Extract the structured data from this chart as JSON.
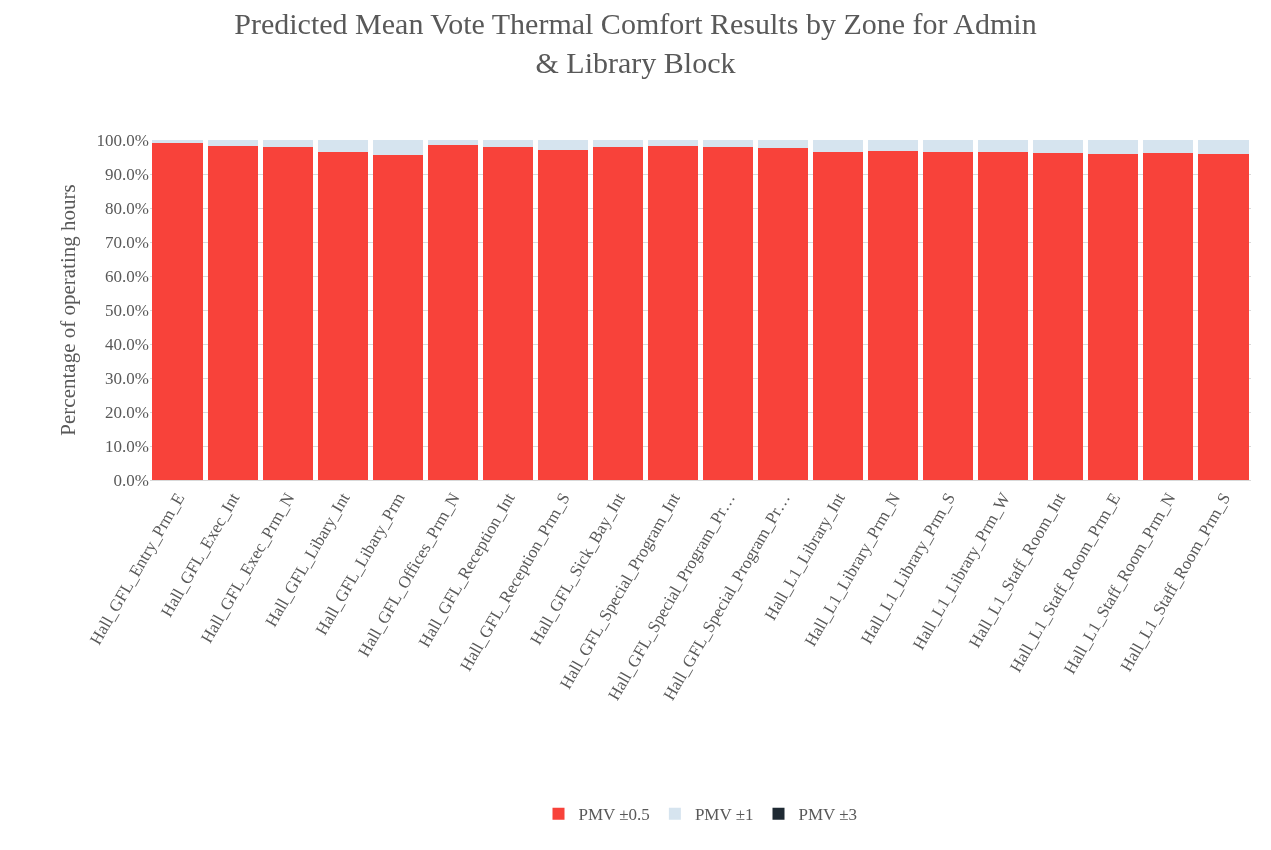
{
  "chart_data": {
    "type": "bar",
    "title": "Predicted Mean Vote Thermal Comfort Results by Zone for Admin & Library Block",
    "ylabel": "Percentage of operating hours",
    "stacked": true,
    "grid": "y",
    "legend": "bottom",
    "categories": [
      "Hall_GFL_Entry_Prm_E",
      "Hall_GFL_Exec_Int",
      "Hall_GFL_Exec_Prm_N",
      "Hall_GFL_Libary_Int",
      "Hall_GFL_Libary_Prm",
      "Hall_GFL_Offices_Prm_N",
      "Hall_GFL_Reception_Int",
      "Hall_GFL_Reception_Prm_S",
      "Hall_GFL_Sick_Bay_Int",
      "Hall_GFL_Special_Program_Int",
      "Hall_GFL_Special_Program_Pr…",
      "Hall_GFL_Special_Program_Pr…",
      "Hall_L1_Library_Int",
      "Hall_L1_Library_Prm_N",
      "Hall_L1_Library_Prm_S",
      "Hall_L1_Library_Prm_W",
      "Hall_L1_Staff_Room_Int",
      "Hall_L1_Staff_Room_Prm_E",
      "Hall_L1_Staff_Room_Prm_N",
      "Hall_L1_Staff_Room_Prm_S"
    ],
    "series": [
      {
        "name": "PMV ±0.5",
        "color": "#f8423a",
        "values": [
          99.1,
          98.2,
          97.9,
          96.5,
          95.6,
          98.4,
          97.8,
          97.2,
          97.9,
          98.2,
          98.0,
          97.6,
          96.6,
          96.8,
          96.4,
          96.6,
          96.2,
          95.9,
          96.3,
          95.8
        ]
      },
      {
        "name": "PMV ±1",
        "color": "#d6e4ef",
        "values": [
          0.9,
          1.8,
          2.1,
          3.5,
          4.4,
          1.6,
          2.2,
          2.8,
          2.1,
          1.8,
          2.0,
          2.4,
          3.4,
          3.2,
          3.6,
          3.4,
          3.8,
          4.1,
          3.7,
          4.2
        ]
      },
      {
        "name": "PMV ±3",
        "color": "#1f2a33",
        "values": [
          0,
          0,
          0,
          0,
          0,
          0,
          0,
          0,
          0,
          0,
          0,
          0,
          0,
          0,
          0,
          0,
          0,
          0,
          0,
          0
        ]
      }
    ],
    "ylim": [
      0,
      100
    ],
    "yticks": [
      {
        "value": 0,
        "label": "0.0%"
      },
      {
        "value": 10,
        "label": "10.0%"
      },
      {
        "value": 20,
        "label": "20.0%"
      },
      {
        "value": 30,
        "label": "30.0%"
      },
      {
        "value": 40,
        "label": "40.0%"
      },
      {
        "value": 50,
        "label": "50.0%"
      },
      {
        "value": 60,
        "label": "60.0%"
      },
      {
        "value": 70,
        "label": "70.0%"
      },
      {
        "value": 80,
        "label": "80.0%"
      },
      {
        "value": 90,
        "label": "90.0%"
      },
      {
        "value": 100,
        "label": "100.0%"
      }
    ]
  }
}
